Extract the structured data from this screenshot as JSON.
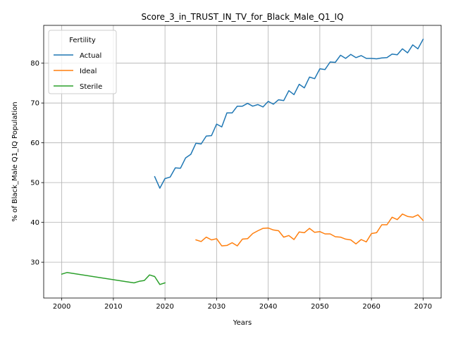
{
  "chart_data": {
    "type": "line",
    "title": "Score_3_in_TRUST_IN_TV_for_Black_Male_Q1_IQ",
    "xlabel": "Years",
    "ylabel": "% of Black_Male Q1_IQ Population",
    "xlim": [
      1996.5,
      2073.5
    ],
    "ylim": [
      21,
      89.5
    ],
    "xticks": [
      2000,
      2010,
      2020,
      2030,
      2040,
      2050,
      2060,
      2070
    ],
    "yticks": [
      30,
      40,
      50,
      60,
      70,
      80
    ],
    "grid": true,
    "legend": {
      "title": "Fertility",
      "placement": "upper-left"
    },
    "series": [
      {
        "name": "Actual",
        "color": "#1f77b4",
        "x": [
          2018,
          2019,
          2020,
          2021,
          2022,
          2023,
          2024,
          2025,
          2026,
          2027,
          2028,
          2029,
          2030,
          2031,
          2032,
          2033,
          2034,
          2035,
          2036,
          2037,
          2038,
          2039,
          2040,
          2041,
          2042,
          2043,
          2044,
          2045,
          2046,
          2047,
          2048,
          2049,
          2050,
          2051,
          2052,
          2053,
          2054,
          2055,
          2056,
          2057,
          2058,
          2059,
          2060,
          2061,
          2062,
          2063,
          2064,
          2065,
          2066,
          2067,
          2068,
          2069,
          2070
        ],
        "y": [
          51.5,
          48.6,
          51.0,
          51.4,
          53.7,
          53.6,
          56.2,
          57.1,
          59.9,
          59.7,
          61.7,
          61.8,
          64.7,
          64.0,
          67.5,
          67.5,
          69.2,
          69.2,
          69.9,
          69.2,
          69.6,
          69.0,
          70.4,
          69.7,
          70.8,
          70.6,
          73.1,
          72.1,
          74.7,
          73.8,
          76.5,
          76.1,
          78.6,
          78.4,
          80.3,
          80.2,
          82.0,
          81.2,
          82.2,
          81.4,
          81.9,
          81.2,
          81.2,
          81.1,
          81.3,
          81.4,
          82.3,
          82.1,
          83.6,
          82.6,
          84.6,
          83.6,
          86.0
        ]
      },
      {
        "name": "Ideal",
        "color": "#ff7f0e",
        "x": [
          2026,
          2027,
          2028,
          2029,
          2030,
          2031,
          2032,
          2033,
          2034,
          2035,
          2036,
          2037,
          2038,
          2039,
          2040,
          2041,
          2042,
          2043,
          2044,
          2045,
          2046,
          2047,
          2048,
          2049,
          2050,
          2051,
          2052,
          2053,
          2054,
          2055,
          2056,
          2057,
          2058,
          2059,
          2060,
          2061,
          2062,
          2063,
          2064,
          2065,
          2066,
          2067,
          2068,
          2069,
          2070
        ],
        "y": [
          35.6,
          35.2,
          36.3,
          35.6,
          35.9,
          34.1,
          34.2,
          34.9,
          34.1,
          35.8,
          35.9,
          37.2,
          37.9,
          38.5,
          38.6,
          38.1,
          37.9,
          36.3,
          36.7,
          35.7,
          37.6,
          37.4,
          38.5,
          37.5,
          37.7,
          37.1,
          37.1,
          36.4,
          36.3,
          35.8,
          35.6,
          34.6,
          35.7,
          35.1,
          37.2,
          37.4,
          39.4,
          39.4,
          41.3,
          40.7,
          42.1,
          41.5,
          41.3,
          41.9,
          40.5
        ]
      },
      {
        "name": "Sterile",
        "color": "#2ca02c",
        "x": [
          2000,
          2001,
          2014,
          2015,
          2016,
          2017,
          2018,
          2019,
          2020
        ],
        "y": [
          27.0,
          27.4,
          24.8,
          25.2,
          25.4,
          26.8,
          26.4,
          24.4,
          24.8
        ]
      }
    ]
  }
}
